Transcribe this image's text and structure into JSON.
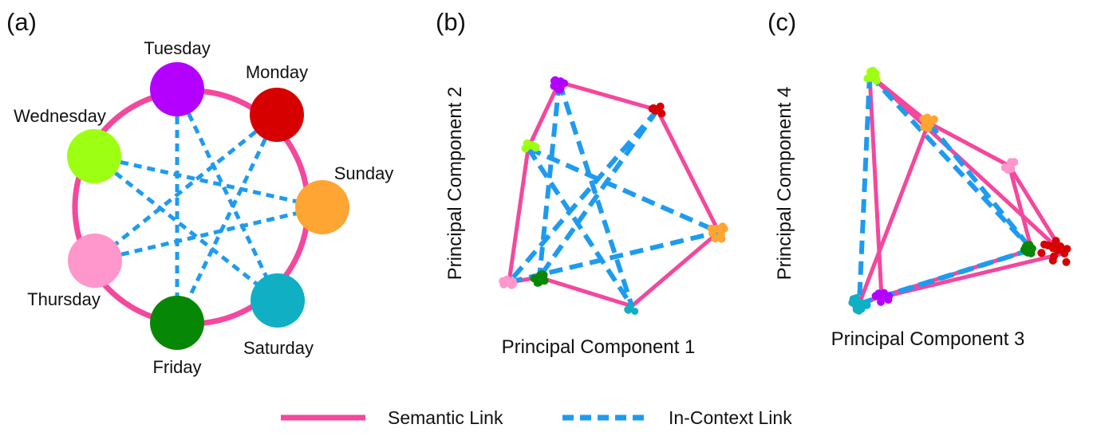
{
  "colors": {
    "semantic_link": "#f4479d",
    "in_context_link": "#1e9bef",
    "days": {
      "Monday": "#d60000",
      "Tuesday": "#b300ff",
      "Wednesday": "#9dff12",
      "Thursday": "#ff96cc",
      "Friday": "#068806",
      "Saturday": "#10afc4",
      "Sunday": "#ffa533"
    }
  },
  "panels": {
    "a": {
      "label": "(a)",
      "days": [
        "Monday",
        "Tuesday",
        "Wednesday",
        "Thursday",
        "Friday",
        "Saturday",
        "Sunday"
      ]
    },
    "b": {
      "label": "(b)",
      "xlabel": "Principal Component 1",
      "ylabel": "Principal Component 2"
    },
    "c": {
      "label": "(c)",
      "xlabel": "Principal Component 3",
      "ylabel": "Principal Component 4"
    }
  },
  "legend": {
    "semantic": "Semantic Link",
    "in_context": "In-Context Link"
  }
}
